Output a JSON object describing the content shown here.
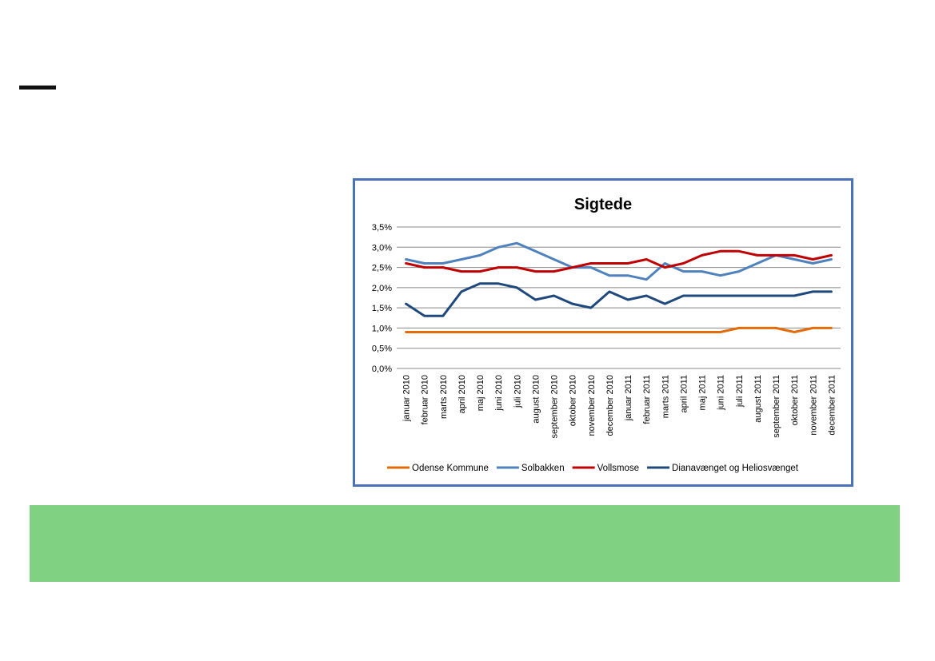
{
  "colors": {
    "frame": "#4a72b8",
    "banner": "#81d183",
    "odense": "#e36c09",
    "solbakken": "#4f81bd",
    "vollsmose": "#c00000",
    "dianavaenget": "#1f497d"
  },
  "chart_data": {
    "type": "line",
    "title": "Sigtede",
    "xlabel": "",
    "ylabel": "",
    "ylim": [
      0,
      0.035
    ],
    "grid": true,
    "legend_position": "bottom",
    "y_ticks": [
      "0,0%",
      "0,5%",
      "1,0%",
      "1,5%",
      "2,0%",
      "2,5%",
      "3,0%",
      "3,5%"
    ],
    "categories": [
      "januar 2010",
      "februar 2010",
      "marts 2010",
      "april 2010",
      "maj 2010",
      "juni 2010",
      "juli 2010",
      "august 2010",
      "september 2010",
      "oktober 2010",
      "november 2010",
      "december 2010",
      "januar 2011",
      "februar 2011",
      "marts 2011",
      "april 2011",
      "maj 2011",
      "juni 2011",
      "juli 2011",
      "august 2011",
      "september 2011",
      "oktober 2011",
      "november 2011",
      "december 2011"
    ],
    "series": [
      {
        "name": "Odense Kommune",
        "color": "#e36c09",
        "values": [
          0.009,
          0.009,
          0.009,
          0.009,
          0.009,
          0.009,
          0.009,
          0.009,
          0.009,
          0.009,
          0.009,
          0.009,
          0.009,
          0.009,
          0.009,
          0.009,
          0.009,
          0.009,
          0.01,
          0.01,
          0.01,
          0.009,
          0.01,
          0.01
        ]
      },
      {
        "name": "Solbakken",
        "color": "#4f81bd",
        "values": [
          0.027,
          0.026,
          0.026,
          0.027,
          0.028,
          0.03,
          0.031,
          0.029,
          0.027,
          0.025,
          0.025,
          0.023,
          0.023,
          0.022,
          0.026,
          0.024,
          0.024,
          0.023,
          0.024,
          0.026,
          0.028,
          0.027,
          0.026,
          0.027
        ]
      },
      {
        "name": "Vollsmose",
        "color": "#c00000",
        "values": [
          0.026,
          0.025,
          0.025,
          0.024,
          0.024,
          0.025,
          0.025,
          0.024,
          0.024,
          0.025,
          0.026,
          0.026,
          0.026,
          0.027,
          0.025,
          0.026,
          0.028,
          0.029,
          0.029,
          0.028,
          0.028,
          0.028,
          0.027,
          0.028
        ]
      },
      {
        "name": "Dianavænget og Heliosvænget",
        "color": "#1f497d",
        "values": [
          0.016,
          0.013,
          0.013,
          0.019,
          0.021,
          0.021,
          0.02,
          0.017,
          0.018,
          0.016,
          0.015,
          0.019,
          0.017,
          0.018,
          0.016,
          0.018,
          0.018,
          0.018,
          0.018,
          0.018,
          0.018,
          0.018,
          0.019,
          0.019
        ]
      }
    ]
  }
}
